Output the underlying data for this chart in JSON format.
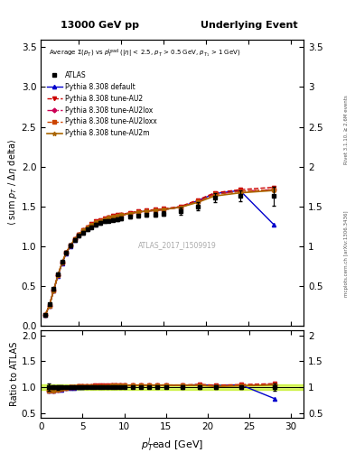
{
  "title_left": "13000 GeV pp",
  "title_right": "Underlying Event",
  "xlabel": "p$_T^l$ead [GeV]",
  "ylabel_main": "⟨ sum p_T / Δη delta⟩",
  "ylabel_ratio": "Ratio to ATLAS",
  "watermark": "ATLAS_2017_I1509919",
  "rivet_text": "Rivet 3.1.10, ≥ 2.6M events",
  "arxiv_text": "mcplots.cern.ch [arXiv:1306.3436]",
  "xdata": [
    1.0,
    1.5,
    2.0,
    2.5,
    3.0,
    3.5,
    4.0,
    4.5,
    5.0,
    5.5,
    6.0,
    6.5,
    7.0,
    7.5,
    8.0,
    8.5,
    9.0,
    9.5,
    10.0,
    11.0,
    12.0,
    13.0,
    14.0,
    15.0,
    17.0,
    19.0,
    21.0,
    24.0,
    28.0
  ],
  "atlas_y": [
    0.14,
    0.27,
    0.46,
    0.65,
    0.8,
    0.92,
    1.01,
    1.08,
    1.13,
    1.17,
    1.21,
    1.24,
    1.27,
    1.29,
    1.31,
    1.32,
    1.33,
    1.34,
    1.35,
    1.37,
    1.38,
    1.39,
    1.4,
    1.41,
    1.44,
    1.5,
    1.61,
    1.63,
    1.63
  ],
  "atlas_yerr": [
    0.01,
    0.01,
    0.02,
    0.02,
    0.02,
    0.02,
    0.02,
    0.02,
    0.02,
    0.02,
    0.02,
    0.02,
    0.02,
    0.02,
    0.02,
    0.02,
    0.02,
    0.02,
    0.02,
    0.02,
    0.02,
    0.02,
    0.03,
    0.03,
    0.04,
    0.05,
    0.06,
    0.07,
    0.12
  ],
  "py_default_y": [
    0.13,
    0.25,
    0.44,
    0.62,
    0.78,
    0.91,
    1.0,
    1.08,
    1.14,
    1.19,
    1.23,
    1.27,
    1.3,
    1.32,
    1.34,
    1.36,
    1.37,
    1.38,
    1.39,
    1.41,
    1.43,
    1.44,
    1.45,
    1.46,
    1.49,
    1.57,
    1.66,
    1.7,
    1.27
  ],
  "py_AU2_y": [
    0.13,
    0.25,
    0.44,
    0.63,
    0.79,
    0.92,
    1.01,
    1.09,
    1.15,
    1.2,
    1.24,
    1.28,
    1.31,
    1.33,
    1.35,
    1.36,
    1.38,
    1.39,
    1.4,
    1.42,
    1.44,
    1.45,
    1.46,
    1.47,
    1.5,
    1.58,
    1.67,
    1.71,
    1.74
  ],
  "py_AU2lox_y": [
    0.13,
    0.25,
    0.44,
    0.63,
    0.79,
    0.92,
    1.01,
    1.09,
    1.15,
    1.2,
    1.24,
    1.27,
    1.3,
    1.32,
    1.34,
    1.36,
    1.37,
    1.38,
    1.39,
    1.41,
    1.43,
    1.44,
    1.45,
    1.46,
    1.49,
    1.56,
    1.65,
    1.69,
    1.71
  ],
  "py_AU2loxx_y": [
    0.13,
    0.25,
    0.44,
    0.63,
    0.79,
    0.92,
    1.01,
    1.09,
    1.15,
    1.2,
    1.24,
    1.27,
    1.3,
    1.32,
    1.34,
    1.36,
    1.37,
    1.38,
    1.39,
    1.41,
    1.43,
    1.44,
    1.45,
    1.46,
    1.49,
    1.56,
    1.65,
    1.69,
    1.71
  ],
  "py_AU2m_y": [
    0.13,
    0.25,
    0.44,
    0.63,
    0.79,
    0.92,
    1.01,
    1.09,
    1.15,
    1.2,
    1.24,
    1.27,
    1.3,
    1.32,
    1.34,
    1.36,
    1.37,
    1.38,
    1.39,
    1.41,
    1.43,
    1.44,
    1.45,
    1.46,
    1.49,
    1.55,
    1.63,
    1.67,
    1.7
  ],
  "color_atlas": "#000000",
  "color_default": "#0000cc",
  "color_AU2": "#cc0000",
  "color_AU2lox": "#cc0055",
  "color_AU2loxx": "#cc4400",
  "color_AU2m": "#aa6600",
  "ylim_main": [
    0.0,
    3.6
  ],
  "ylim_ratio": [
    0.4,
    2.1
  ],
  "yticks_main": [
    0.0,
    0.5,
    1.0,
    1.5,
    2.0,
    2.5,
    3.0,
    3.5
  ],
  "yticks_ratio": [
    0.5,
    1.0,
    1.5,
    2.0
  ],
  "xlim": [
    0.5,
    31.5
  ],
  "xticks": [
    0,
    5,
    10,
    15,
    20,
    25,
    30
  ]
}
